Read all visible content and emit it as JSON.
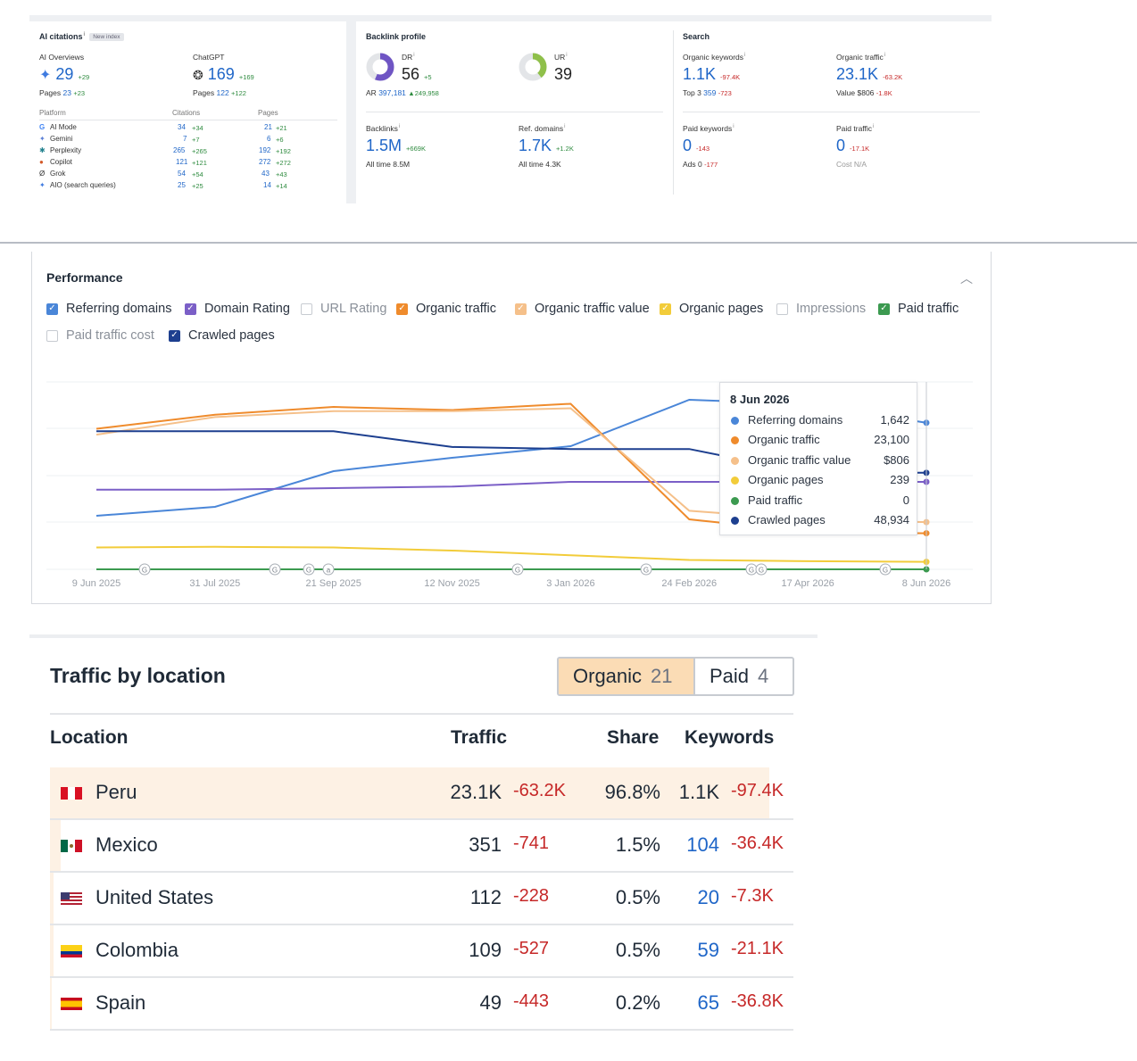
{
  "ai_citations": {
    "title": "AI citations",
    "badge": "New index",
    "ai_overviews": {
      "label": "AI Overviews",
      "value": "29",
      "delta": "+29",
      "pages_label": "Pages",
      "pages": "23",
      "pages_delta": "+23"
    },
    "chatgpt": {
      "label": "ChatGPT",
      "value": "169",
      "delta": "+169",
      "pages_label": "Pages",
      "pages": "122",
      "pages_delta": "+122"
    },
    "table_headers": {
      "platform": "Platform",
      "citations": "Citations",
      "pages": "Pages"
    },
    "rows": [
      {
        "icon": "google-icon",
        "name": "AI Mode",
        "citations": "34",
        "citations_delta": "+34",
        "pages": "21",
        "pages_delta": "+21"
      },
      {
        "icon": "gemini-icon",
        "name": "Gemini",
        "citations": "7",
        "citations_delta": "+7",
        "pages": "6",
        "pages_delta": "+6"
      },
      {
        "icon": "perplexity-icon",
        "name": "Perplexity",
        "citations": "265",
        "citations_delta": "+265",
        "pages": "192",
        "pages_delta": "+192"
      },
      {
        "icon": "copilot-icon",
        "name": "Copilot",
        "citations": "121",
        "citations_delta": "+121",
        "pages": "272",
        "pages_delta": "+272"
      },
      {
        "icon": "grok-icon",
        "name": "Grok",
        "citations": "54",
        "citations_delta": "+54",
        "pages": "43",
        "pages_delta": "+43"
      },
      {
        "icon": "sparkle-icon",
        "name": "AIO (search queries)",
        "citations": "25",
        "citations_delta": "+25",
        "pages": "14",
        "pages_delta": "+14"
      }
    ]
  },
  "backlink_profile": {
    "title": "Backlink profile",
    "dr": {
      "label": "DR",
      "value": "56",
      "delta": "+5",
      "gauge": 0.56
    },
    "ar": {
      "label": "AR",
      "value": "397,181",
      "delta": "249,958"
    },
    "ur": {
      "label": "UR",
      "value": "39",
      "gauge": 0.39
    },
    "backlinks": {
      "label": "Backlinks",
      "value": "1.5M",
      "delta": "+669K",
      "sub": "All time 8.5M"
    },
    "ref_domains": {
      "label": "Ref. domains",
      "value": "1.7K",
      "delta": "+1.2K",
      "sub": "All time 4.3K"
    }
  },
  "search": {
    "title": "Search",
    "organic_keywords": {
      "label": "Organic keywords",
      "value": "1.1K",
      "delta": "-97.4K",
      "sub_label": "Top 3",
      "sub_value": "359",
      "sub_delta": "-723"
    },
    "organic_traffic": {
      "label": "Organic traffic",
      "value": "23.1K",
      "delta": "-63.2K",
      "sub_label": "Value",
      "sub_value": "$806",
      "sub_delta": "-1.8K"
    },
    "paid_keywords": {
      "label": "Paid keywords",
      "value": "0",
      "delta": "-143",
      "sub_label": "Ads",
      "sub_value": "0",
      "sub_delta": "-177"
    },
    "paid_traffic": {
      "label": "Paid traffic",
      "value": "0",
      "delta": "-17.1K",
      "sub": "Cost N/A"
    }
  },
  "performance": {
    "title": "Performance",
    "checkboxes": [
      {
        "label": "Referring domains",
        "checked": true,
        "color": "#4a86d8"
      },
      {
        "label": "Domain Rating",
        "checked": true,
        "color": "#7b5fc7"
      },
      {
        "label": "URL Rating",
        "checked": false,
        "color": "#c7cbd1"
      },
      {
        "label": "Organic traffic",
        "checked": true,
        "color": "#ef8b2c"
      },
      {
        "label": "Organic traffic value",
        "checked": true,
        "color": "#f5c08a"
      },
      {
        "label": "Organic pages",
        "checked": true,
        "color": "#f2cc3a"
      },
      {
        "label": "Impressions",
        "checked": false,
        "color": "#c7cbd1"
      },
      {
        "label": "Paid traffic",
        "checked": true,
        "color": "#3c9a50"
      },
      {
        "label": "Paid traffic cost",
        "checked": false,
        "color": "#c7cbd1"
      },
      {
        "label": "Crawled pages",
        "checked": true,
        "color": "#1d3f8f"
      }
    ],
    "tooltip": {
      "date": "8 Jun 2026",
      "rows": [
        {
          "name": "Referring domains",
          "value": "1,642",
          "color": "#4a86d8"
        },
        {
          "name": "Organic traffic",
          "value": "23,100",
          "color": "#ef8b2c"
        },
        {
          "name": "Organic traffic value",
          "value": "$806",
          "color": "#f5c08a"
        },
        {
          "name": "Organic pages",
          "value": "239",
          "color": "#f2cc3a"
        },
        {
          "name": "Paid traffic",
          "value": "0",
          "color": "#3c9a50"
        },
        {
          "name": "Crawled pages",
          "value": "48,934",
          "color": "#1d3f8f"
        }
      ]
    },
    "x_ticks": [
      "9 Jun 2025",
      "31 Jul 2025",
      "21 Sep 2025",
      "12 Nov 2025",
      "3 Jan 2026",
      "24 Feb 2026",
      "17 Apr 2026",
      "8 Jun 2026"
    ],
    "markers": [
      "G",
      "G",
      "G",
      "a",
      "G",
      "G",
      "G",
      "G",
      "G"
    ]
  },
  "chart_data": {
    "type": "line",
    "x": [
      "2025-06-09",
      "2025-07-31",
      "2025-09-21",
      "2025-11-12",
      "2026-01-03",
      "2026-02-24",
      "2026-04-17",
      "2026-06-08"
    ],
    "series": [
      {
        "name": "Referring domains",
        "values": [
          600,
          700,
          1100,
          1250,
          1380,
          1900,
          1850,
          1642
        ]
      },
      {
        "name": "Domain Rating",
        "values": [
          51,
          51,
          52,
          53,
          56,
          56,
          56,
          56
        ]
      },
      {
        "name": "Organic traffic",
        "values": [
          90000,
          99000,
          104000,
          102000,
          106000,
          32000,
          24000,
          23100
        ]
      },
      {
        "name": "Organic traffic value",
        "values": [
          2300,
          2600,
          2700,
          2700,
          2750,
          1000,
          850,
          806
        ]
      },
      {
        "name": "Organic pages",
        "values": [
          700,
          720,
          700,
          600,
          450,
          300,
          260,
          239
        ]
      },
      {
        "name": "Paid traffic",
        "values": [
          0,
          0,
          0,
          0,
          0,
          0,
          0,
          0
        ]
      },
      {
        "name": "Crawled pages",
        "values": [
          70000,
          70000,
          70000,
          62000,
          61000,
          61000,
          48934,
          48934
        ]
      }
    ]
  },
  "traffic_by_location": {
    "title": "Traffic by location",
    "tabs": [
      {
        "label": "Organic",
        "count": "21"
      },
      {
        "label": "Paid",
        "count": "4"
      }
    ],
    "headers": {
      "location": "Location",
      "traffic": "Traffic",
      "share": "Share",
      "keywords": "Keywords"
    },
    "rows": [
      {
        "flag": "peru-flag",
        "name": "Peru",
        "traffic": "23.1K",
        "traffic_delta": "-63.2K",
        "share": "96.8%",
        "keywords": "1.1K",
        "keywords_delta": "-97.4K",
        "share_fill": 0.968
      },
      {
        "flag": "mexico-flag",
        "name": "Mexico",
        "traffic": "351",
        "traffic_delta": "-741",
        "share": "1.5%",
        "keywords": "104",
        "keywords_delta": "-36.4K",
        "share_fill": 0.015
      },
      {
        "flag": "usa-flag",
        "name": "United States",
        "traffic": "112",
        "traffic_delta": "-228",
        "share": "0.5%",
        "keywords": "20",
        "keywords_delta": "-7.3K",
        "share_fill": 0.005
      },
      {
        "flag": "colombia-flag",
        "name": "Colombia",
        "traffic": "109",
        "traffic_delta": "-527",
        "share": "0.5%",
        "keywords": "59",
        "keywords_delta": "-21.1K",
        "share_fill": 0.005
      },
      {
        "flag": "spain-flag",
        "name": "Spain",
        "traffic": "49",
        "traffic_delta": "-443",
        "share": "0.2%",
        "keywords": "65",
        "keywords_delta": "-36.8K",
        "share_fill": 0.002
      }
    ]
  }
}
